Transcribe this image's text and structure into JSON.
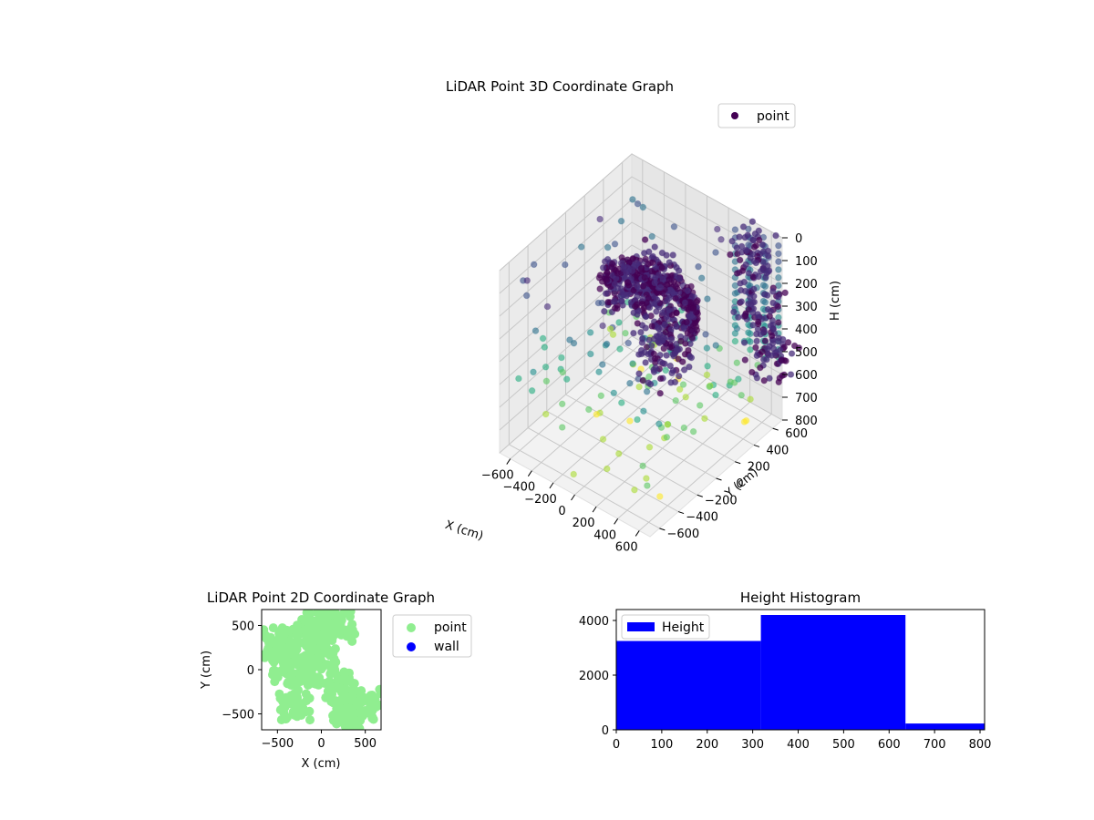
{
  "chart_data": [
    {
      "type": "scatter",
      "title": "LiDAR Point 3D Coordinate Graph",
      "projection": "3d",
      "xlabel": "X (cm)",
      "ylabel": "Y (cm)",
      "zlabel": "H (cm)",
      "xlim": [
        -700,
        700
      ],
      "ylim": [
        -700,
        700
      ],
      "zlim": [
        800,
        0
      ],
      "xticks": [
        "−600",
        "−400",
        "−200",
        "0",
        "200",
        "400",
        "600"
      ],
      "yticks": [
        "−600",
        "−400",
        "−200",
        "0",
        "200",
        "400",
        "600"
      ],
      "zticks": [
        "0",
        "100",
        "200",
        "300",
        "400",
        "500",
        "600",
        "700",
        "800"
      ],
      "legend": {
        "position": "top-right",
        "entries": [
          {
            "label": "point",
            "color": "#440154"
          }
        ]
      },
      "colormap": "viridis",
      "grid": true,
      "series": [
        {
          "name": "point",
          "description_points": [
            {
              "x": -300,
              "y": 200,
              "h": 300
            },
            {
              "x": -200,
              "y": 300,
              "h": 250
            },
            {
              "x": 0,
              "y": 200,
              "h": 220
            },
            {
              "x": 100,
              "y": 100,
              "h": 260
            },
            {
              "x": 200,
              "y": 0,
              "h": 300
            },
            {
              "x": 300,
              "y": -100,
              "h": 350
            },
            {
              "x": -400,
              "y": 400,
              "h": 400
            },
            {
              "x": 500,
              "y": 600,
              "h": 100
            },
            {
              "x": 600,
              "y": 600,
              "h": 300
            },
            {
              "x": 650,
              "y": 650,
              "h": 500
            }
          ]
        }
      ]
    },
    {
      "type": "scatter",
      "title": "LiDAR Point 2D Coordinate Graph",
      "xlabel": "X (cm)",
      "ylabel": "Y (cm)",
      "xlim": [
        -680,
        680
      ],
      "ylim": [
        -680,
        680
      ],
      "xticks": [
        "−500",
        "0",
        "500"
      ],
      "yticks": [
        "−500",
        "0",
        "500"
      ],
      "legend": {
        "position": "outside-right",
        "entries": [
          {
            "label": "point",
            "color": "#90ee90"
          },
          {
            "label": "wall",
            "color": "#0000ff"
          }
        ]
      },
      "series": [
        {
          "name": "point",
          "color": "#90ee90",
          "clusters": [
            {
              "x": -300,
              "y": 300
            },
            {
              "x": -100,
              "y": 400
            },
            {
              "x": 0,
              "y": 500
            },
            {
              "x": -400,
              "y": 0
            },
            {
              "x": -200,
              "y": 0
            },
            {
              "x": 0,
              "y": 100
            },
            {
              "x": 200,
              "y": -200
            },
            {
              "x": -300,
              "y": -400
            },
            {
              "x": 300,
              "y": -500
            },
            {
              "x": 500,
              "y": -400
            },
            {
              "x": -500,
              "y": 300
            },
            {
              "x": 200,
              "y": 500
            }
          ]
        },
        {
          "name": "wall",
          "color": "#0000ff",
          "values": []
        }
      ]
    },
    {
      "type": "bar",
      "title": "Height Histogram",
      "xlim": [
        0,
        810
      ],
      "ylim": [
        0,
        4400
      ],
      "xticks": [
        "0",
        "100",
        "200",
        "300",
        "400",
        "500",
        "600",
        "700",
        "800"
      ],
      "yticks": [
        "0",
        "2000",
        "4000"
      ],
      "legend": {
        "position": "top-left",
        "entries": [
          {
            "label": "Height",
            "color": "#0000ff"
          }
        ]
      },
      "bins": [
        {
          "from": 0,
          "to": 318,
          "count": 3250
        },
        {
          "from": 318,
          "to": 636,
          "count": 4200
        },
        {
          "from": 636,
          "to": 810,
          "count": 230
        }
      ],
      "color": "#0000ff"
    }
  ]
}
